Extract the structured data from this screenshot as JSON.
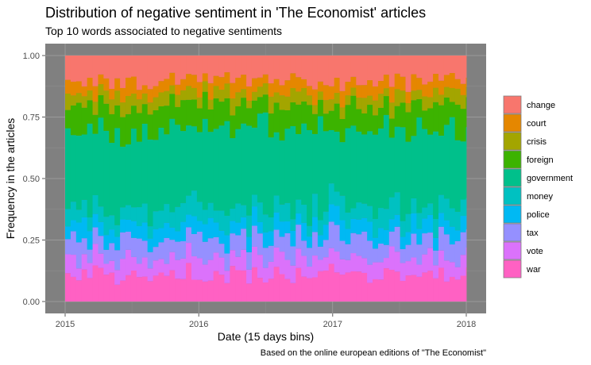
{
  "chart_data": {
    "type": "area",
    "title": "Distribution of negative sentiment in 'The Economist' articles",
    "subtitle": "Top 10 words associated to negative sentiments",
    "xlabel": "Date (15 days bins)",
    "ylabel": "Frequency in the articles",
    "caption": "Based on the online european editions of \"The Economist\"",
    "xlim": [
      "2015-01-01",
      "2018-01-01"
    ],
    "ylim": [
      0,
      1
    ],
    "x_ticks": [
      "2015",
      "2016",
      "2017",
      "2018"
    ],
    "y_ticks": [
      "0.00",
      "0.25",
      "0.50",
      "0.75",
      "1.00"
    ],
    "stacked": true,
    "position": "fill",
    "grid": true,
    "panel_background": "#808080",
    "legend_position": "right",
    "bin_days": 15,
    "series": [
      {
        "name": "war",
        "color": "#FF61C3",
        "mean_share": 0.11
      },
      {
        "name": "vote",
        "color": "#DB72FB",
        "mean_share": 0.07
      },
      {
        "name": "tax",
        "color": "#9590FF",
        "mean_share": 0.08
      },
      {
        "name": "police",
        "color": "#00B9F3",
        "mean_share": 0.06
      },
      {
        "name": "money",
        "color": "#00C1C1",
        "mean_share": 0.07
      },
      {
        "name": "government",
        "color": "#00C08B",
        "mean_share": 0.31
      },
      {
        "name": "foreign",
        "color": "#3CB300",
        "mean_share": 0.1
      },
      {
        "name": "crisis",
        "color": "#A3A500",
        "mean_share": 0.05
      },
      {
        "name": "court",
        "color": "#E58700",
        "mean_share": 0.05
      },
      {
        "name": "change",
        "color": "#F8766D",
        "mean_share": 0.1
      }
    ],
    "legend_order": [
      "change",
      "court",
      "crisis",
      "foreign",
      "government",
      "money",
      "police",
      "tax",
      "vote",
      "war"
    ]
  }
}
